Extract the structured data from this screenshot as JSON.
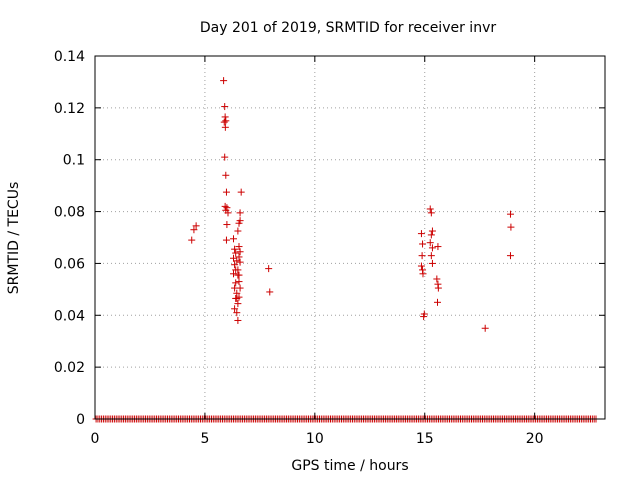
{
  "chart_data": {
    "type": "scatter",
    "title": "Day 201 of 2019, SRMTID for receiver invr",
    "xlabel": "GPS time / hours",
    "ylabel": "SRMTID / TECUs",
    "xlim": [
      0,
      23.2
    ],
    "ylim": [
      0,
      0.14
    ],
    "xticks": [
      0,
      5,
      10,
      15,
      20
    ],
    "xtick_labels": [
      "0",
      "5",
      "10",
      "15",
      "20"
    ],
    "yticks": [
      0,
      0.02,
      0.04,
      0.06,
      0.08,
      0.1,
      0.12,
      0.14
    ],
    "ytick_labels": [
      "0",
      "0.02",
      "0.04",
      "0.06",
      "0.08",
      "0.1",
      "0.12",
      "0.14"
    ],
    "grid": true,
    "marker": "plus",
    "color": "#cc0000",
    "zero_baseline": {
      "x_start": 0.05,
      "x_end": 22.8,
      "step": 0.0833,
      "y": 0
    },
    "points": [
      [
        4.4,
        0.069
      ],
      [
        4.5,
        0.073
      ],
      [
        4.6,
        0.0745
      ],
      [
        5.85,
        0.1305
      ],
      [
        5.9,
        0.1205
      ],
      [
        5.92,
        0.1165
      ],
      [
        5.95,
        0.115
      ],
      [
        5.88,
        0.1145
      ],
      [
        5.93,
        0.1125
      ],
      [
        5.9,
        0.101
      ],
      [
        5.95,
        0.094
      ],
      [
        5.98,
        0.0875
      ],
      [
        5.92,
        0.082
      ],
      [
        6.0,
        0.0815
      ],
      [
        5.95,
        0.0805
      ],
      [
        6.05,
        0.0795
      ],
      [
        6.0,
        0.075
      ],
      [
        5.98,
        0.069
      ],
      [
        6.3,
        0.0695
      ],
      [
        6.35,
        0.0655
      ],
      [
        6.4,
        0.064
      ],
      [
        6.3,
        0.062
      ],
      [
        6.45,
        0.061
      ],
      [
        6.35,
        0.0595
      ],
      [
        6.4,
        0.0575
      ],
      [
        6.3,
        0.056
      ],
      [
        6.5,
        0.0555
      ],
      [
        6.4,
        0.0525
      ],
      [
        6.35,
        0.0505
      ],
      [
        6.45,
        0.0485
      ],
      [
        6.4,
        0.0465
      ],
      [
        6.5,
        0.0445
      ],
      [
        6.35,
        0.0425
      ],
      [
        6.45,
        0.041
      ],
      [
        6.5,
        0.038
      ],
      [
        6.5,
        0.0725
      ],
      [
        6.55,
        0.0755
      ],
      [
        6.6,
        0.0765
      ],
      [
        6.6,
        0.0795
      ],
      [
        6.65,
        0.0875
      ],
      [
        6.55,
        0.0665
      ],
      [
        6.6,
        0.0645
      ],
      [
        6.55,
        0.0625
      ],
      [
        6.6,
        0.0605
      ],
      [
        6.5,
        0.0575
      ],
      [
        6.55,
        0.0555
      ],
      [
        6.6,
        0.0505
      ],
      [
        6.55,
        0.047
      ],
      [
        6.45,
        0.0465
      ],
      [
        6.55,
        0.053
      ],
      [
        7.9,
        0.058
      ],
      [
        7.95,
        0.049
      ],
      [
        14.85,
        0.0715
      ],
      [
        14.9,
        0.0675
      ],
      [
        14.88,
        0.063
      ],
      [
        14.85,
        0.059
      ],
      [
        14.9,
        0.0575
      ],
      [
        14.92,
        0.056
      ],
      [
        14.95,
        0.0395
      ],
      [
        14.98,
        0.0405
      ],
      [
        15.25,
        0.081
      ],
      [
        15.3,
        0.0795
      ],
      [
        15.35,
        0.0725
      ],
      [
        15.3,
        0.071
      ],
      [
        15.25,
        0.068
      ],
      [
        15.35,
        0.066
      ],
      [
        15.3,
        0.063
      ],
      [
        15.35,
        0.06
      ],
      [
        15.6,
        0.0665
      ],
      [
        15.55,
        0.054
      ],
      [
        15.6,
        0.052
      ],
      [
        15.62,
        0.0505
      ],
      [
        15.58,
        0.045
      ],
      [
        17.75,
        0.035
      ],
      [
        18.9,
        0.079
      ],
      [
        18.92,
        0.074
      ],
      [
        18.9,
        0.063
      ]
    ]
  }
}
